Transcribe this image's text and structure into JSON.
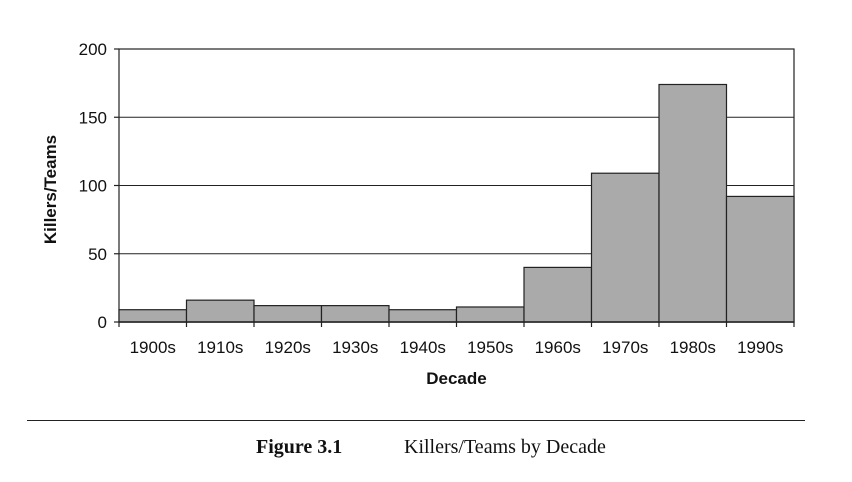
{
  "chart_data": {
    "type": "bar",
    "categories": [
      "1900s",
      "1910s",
      "1920s",
      "1930s",
      "1940s",
      "1950s",
      "1960s",
      "1970s",
      "1980s",
      "1990s"
    ],
    "values": [
      9,
      16,
      12,
      12,
      9,
      11,
      40,
      109,
      174,
      92
    ],
    "xlabel": "Decade",
    "ylabel": "Killers/Teams",
    "ylim": [
      0,
      200
    ],
    "yticks": [
      0,
      50,
      100,
      150,
      200
    ],
    "grid": true,
    "colors": {
      "bar_fill": "#aaaaaa",
      "bar_stroke": "#222222",
      "grid": "#222222"
    }
  },
  "caption": {
    "number": "Figure 3.1",
    "text": "Killers/Teams by Decade"
  }
}
